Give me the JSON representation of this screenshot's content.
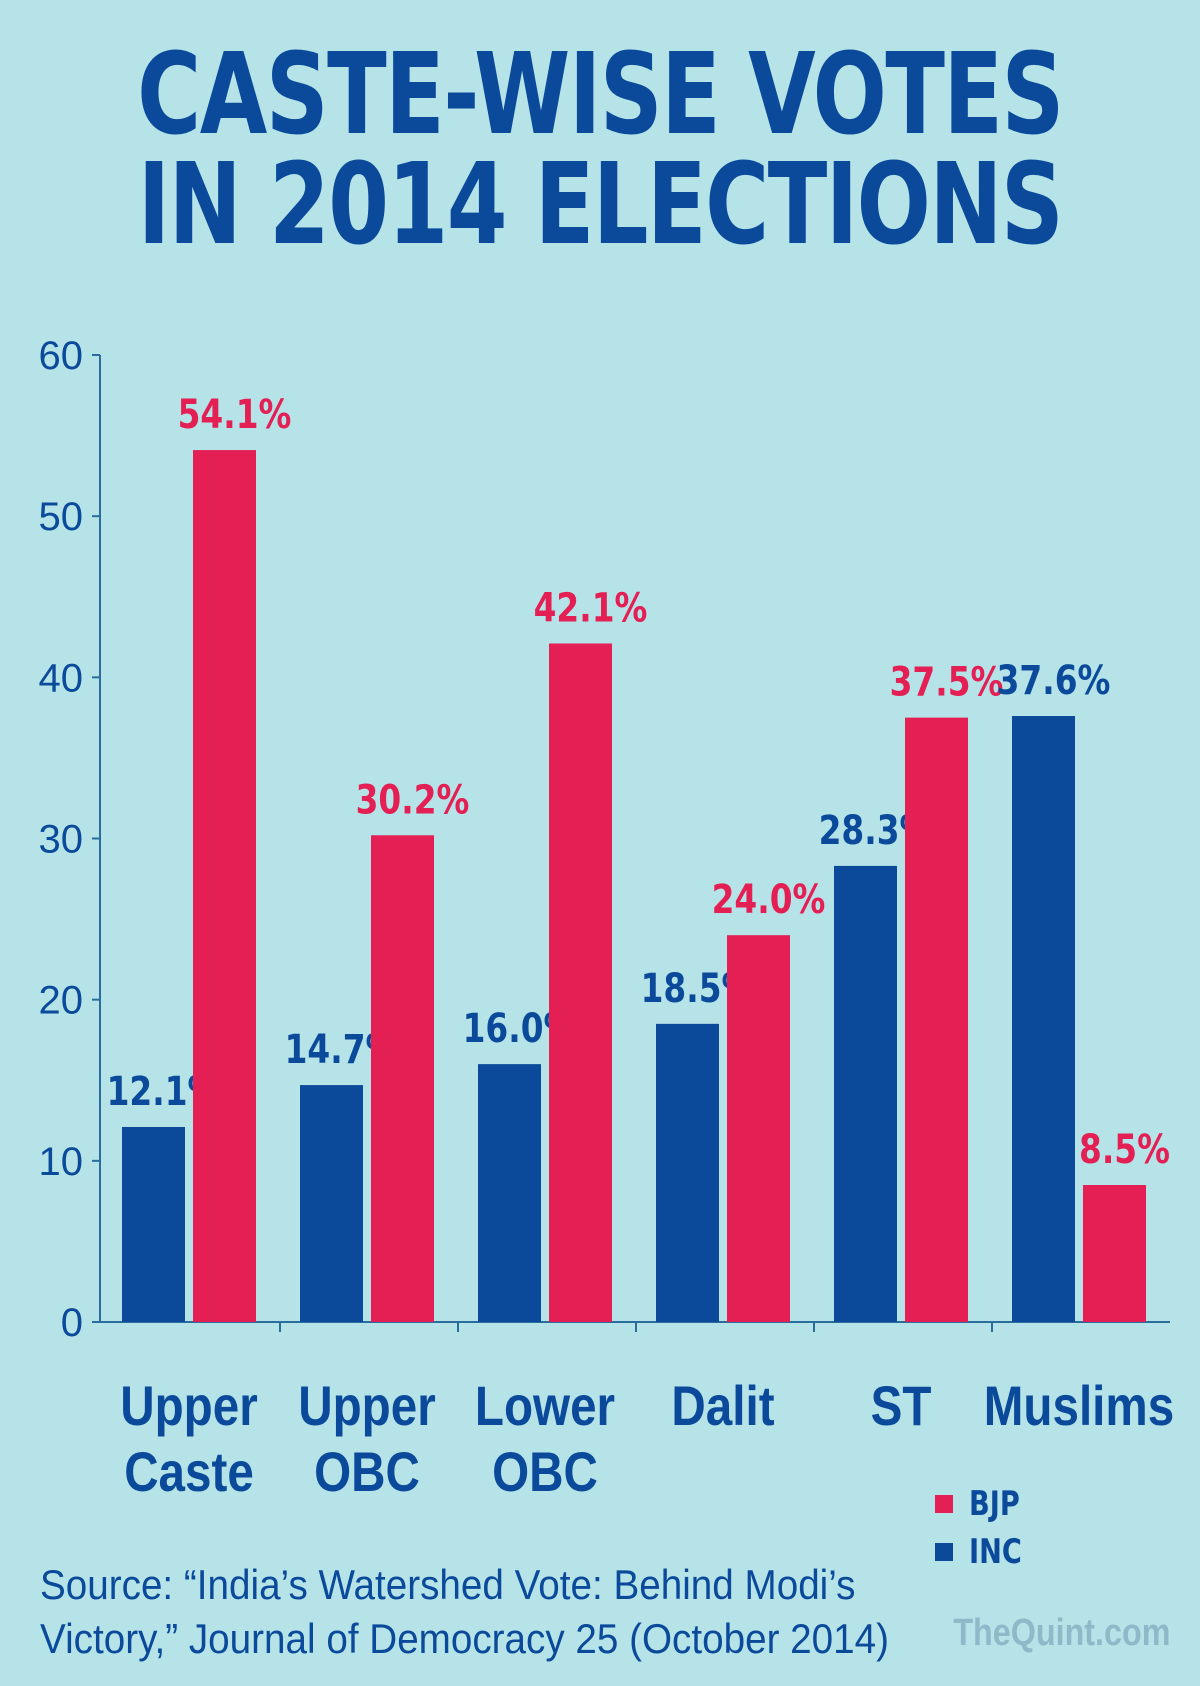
{
  "title": {
    "line1": "CASTE-WISE VOTES",
    "line2": "IN 2014 ELECTIONS"
  },
  "colors": {
    "background": "#b5e3e8",
    "bjp": "#e31f54",
    "inc": "#0b4a9a",
    "axis": "#2a6c9c"
  },
  "chart_data": {
    "type": "bar",
    "title": "CASTE-WISE VOTES IN 2014 ELECTIONS",
    "categories": [
      [
        "Upper",
        "Caste"
      ],
      [
        "Upper",
        "OBC"
      ],
      [
        "Lower",
        "OBC"
      ],
      [
        "Dalit"
      ],
      [
        "ST"
      ],
      [
        "Muslims"
      ]
    ],
    "series": [
      {
        "name": "INC",
        "color": "#0b4a9a",
        "values": [
          12.1,
          14.7,
          16.0,
          18.5,
          28.3,
          37.6
        ],
        "labels": [
          "12.1%",
          "14.7%",
          "16.0%",
          "18.5%",
          "28.3%",
          "37.6%"
        ]
      },
      {
        "name": "BJP",
        "color": "#e31f54",
        "values": [
          54.1,
          30.2,
          42.1,
          24.0,
          37.5,
          8.5
        ],
        "labels": [
          "54.1%",
          "30.2%",
          "42.1%",
          "24.0%",
          "37.5%",
          "8.5%"
        ]
      }
    ],
    "ylim": [
      0,
      60
    ],
    "yticks": [
      "0",
      "10",
      "20",
      "30",
      "40",
      "50",
      "60"
    ],
    "grid": false,
    "legend": "bottom-right"
  },
  "legend": [
    {
      "label": "BJP",
      "color": "#e31f54"
    },
    {
      "label": "INC",
      "color": "#0b4a9a"
    }
  ],
  "source": "Source: “India’s Watershed Vote: Behind Modi’s\nVictory,” Journal of Democracy 25 (October 2014)",
  "watermark": "TheQuint.com"
}
